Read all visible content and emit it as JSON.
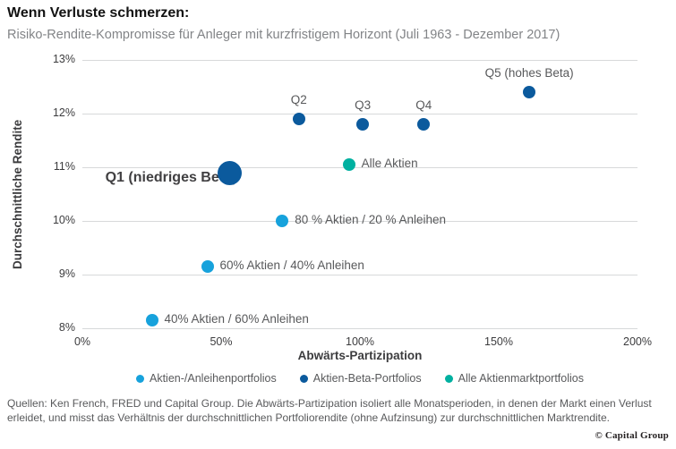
{
  "header": {
    "title": "Wenn Verluste schmerzen:",
    "subtitle": "Risiko-Rendite-Kompromisse für Anleger mit kurzfristigem Horizont (Juli 1963 - Dezember 2017)"
  },
  "chart_data": {
    "type": "scatter",
    "title": "Wenn Verluste schmerzen:",
    "subtitle": "Risiko-Rendite-Kompromisse für Anleger mit kurzfristigem Horizont (Juli 1963 - Dezember 2017)",
    "xlabel": "Abwärts-Partizipation",
    "ylabel": "Durchschnittliche Rendite",
    "xlim": [
      0,
      200
    ],
    "ylim": [
      8,
      13
    ],
    "x_ticks": [
      "0%",
      "50%",
      "100%",
      "150%",
      "200%"
    ],
    "y_ticks": [
      "8%",
      "9%",
      "10%",
      "11%",
      "12%",
      "13%"
    ],
    "grid": "horizontal",
    "legend_position": "bottom",
    "series": [
      {
        "name": "Aktien-/Anleihenportfolios",
        "color": "#17a2dc",
        "points": [
          {
            "label": "40% Aktien / 60% Anleihen",
            "x": 25,
            "y": 8.15,
            "label_pos": "right"
          },
          {
            "label": "60% Aktien / 40% Anleihen",
            "x": 45,
            "y": 9.15,
            "label_pos": "right"
          },
          {
            "label": "80 % Aktien / 20 % Anleihen",
            "x": 72,
            "y": 10.0,
            "label_pos": "right"
          }
        ]
      },
      {
        "name": "Aktien-Beta-Portfolios",
        "color": "#0b5a9d",
        "points": [
          {
            "label": "Q1 (niedriges Beta)",
            "x": 53,
            "y": 10.9,
            "label_pos": "left",
            "emphasis": true
          },
          {
            "label": "Q2",
            "x": 78,
            "y": 11.9,
            "label_pos": "above"
          },
          {
            "label": "Q3",
            "x": 101,
            "y": 11.8,
            "label_pos": "above"
          },
          {
            "label": "Q4",
            "x": 123,
            "y": 11.8,
            "label_pos": "above"
          },
          {
            "label": "Q5 (hohes Beta)",
            "x": 161,
            "y": 12.4,
            "label_pos": "above"
          }
        ]
      },
      {
        "name": "Alle Aktienmarktportfolios",
        "color": "#00b0a0",
        "points": [
          {
            "label": "Alle Aktien",
            "x": 96,
            "y": 11.05,
            "label_pos": "right"
          }
        ]
      }
    ]
  },
  "footer": {
    "sources": "Quellen: Ken French, FRED und Capital Group. Die Abwärts-Partizipation isoliert alle Monatsperioden, in denen der Markt einen Verlust erleidet, und misst das Verhältnis der durchschnittlichen Portfoliorendite (ohne Aufzinsung) zur durchschnittlichen Marktrendite.",
    "copyright": "© Capital Group"
  },
  "colors": {
    "light_blue": "#17a2dc",
    "dark_blue": "#0b5a9d",
    "teal": "#00b0a0",
    "gridline": "#d7d9da"
  }
}
